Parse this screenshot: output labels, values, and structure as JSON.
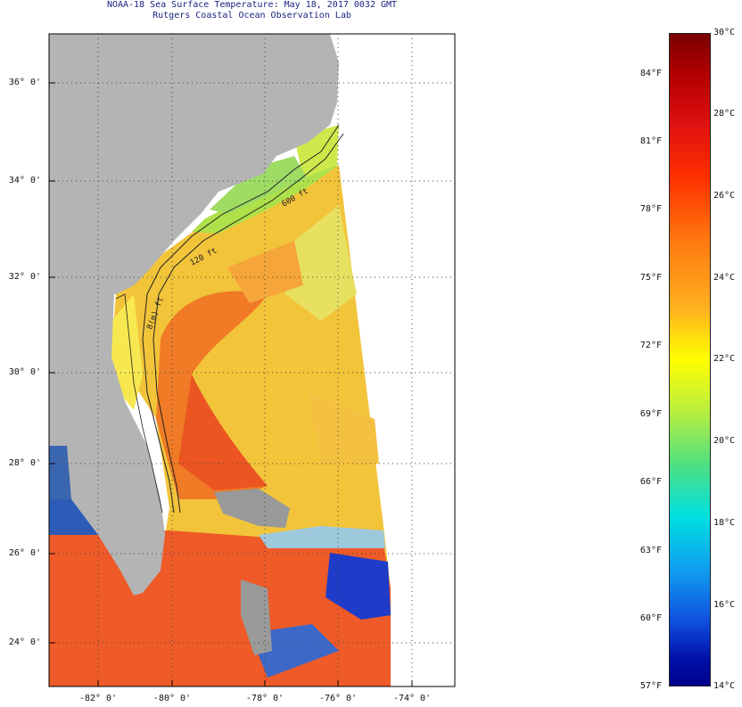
{
  "header": {
    "title": "NOAA-18 Sea Surface Temperature:  May 18, 2017 0032 GMT",
    "subtitle": "Rutgers Coastal Ocean Observation Lab"
  },
  "map": {
    "latitude_labels": [
      "36° 0'",
      "34° 0'",
      "32° 0'",
      "30° 0'",
      "28° 0'",
      "26° 0'",
      "24° 0'"
    ],
    "longitude_labels": [
      "-82° 0'",
      "-80° 0'",
      "-78° 0'",
      "-76° 0'",
      "-74° 0'"
    ],
    "contour_labels": [
      "120 ft",
      "600 ft",
      "8(m) ft"
    ],
    "colors": {
      "land": "#b4b4b4",
      "frame": "#000000",
      "grid": "#555555"
    }
  },
  "colorbar": {
    "fahrenheit_labels": [
      "84°F",
      "81°F",
      "78°F",
      "75°F",
      "72°F",
      "69°F",
      "66°F",
      "63°F",
      "60°F",
      "57°F"
    ],
    "celsius_labels": [
      "30°C",
      "28°C",
      "26°C",
      "24°C",
      "22°C",
      "20°C",
      "18°C",
      "16°C",
      "14°C"
    ]
  }
}
